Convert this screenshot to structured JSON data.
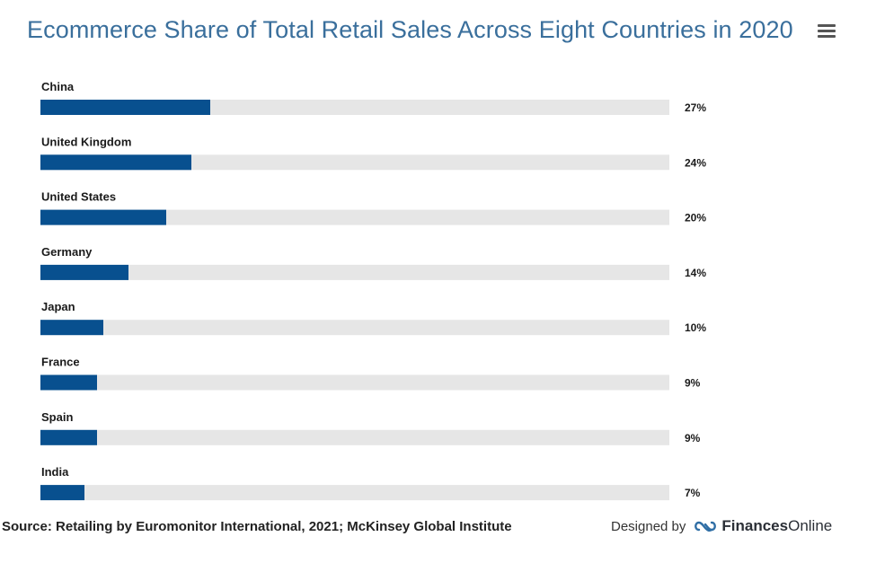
{
  "header": {
    "title": "Ecommerce Share of Total Retail Sales Across Eight Countries in 2020"
  },
  "footer": {
    "source": "Source: Retailing by Euromonitor International, 2021; McKinsey Global Institute",
    "designed_by": "Designed by",
    "brand_bold": "Finances",
    "brand_regular": "Online"
  },
  "colors": {
    "bar": "#08508f",
    "track": "#e6e6e6",
    "title": "#3a6f9c"
  },
  "icons": {
    "menu": "hamburger-menu-icon",
    "brand": "finances-online-logo-icon"
  },
  "chart_data": {
    "type": "bar",
    "orientation": "horizontal",
    "title": "Ecommerce Share of Total Retail Sales Across Eight Countries in 2020",
    "categories": [
      "China",
      "United Kingdom",
      "United States",
      "Germany",
      "Japan",
      "France",
      "Spain",
      "India"
    ],
    "values": [
      27,
      24,
      20,
      14,
      10,
      9,
      9,
      7
    ],
    "value_labels": [
      "27%",
      "24%",
      "20%",
      "14%",
      "10%",
      "9%",
      "9%",
      "7%"
    ],
    "unit": "%",
    "xlim": [
      0,
      100
    ],
    "grid": false,
    "legend": "none"
  }
}
